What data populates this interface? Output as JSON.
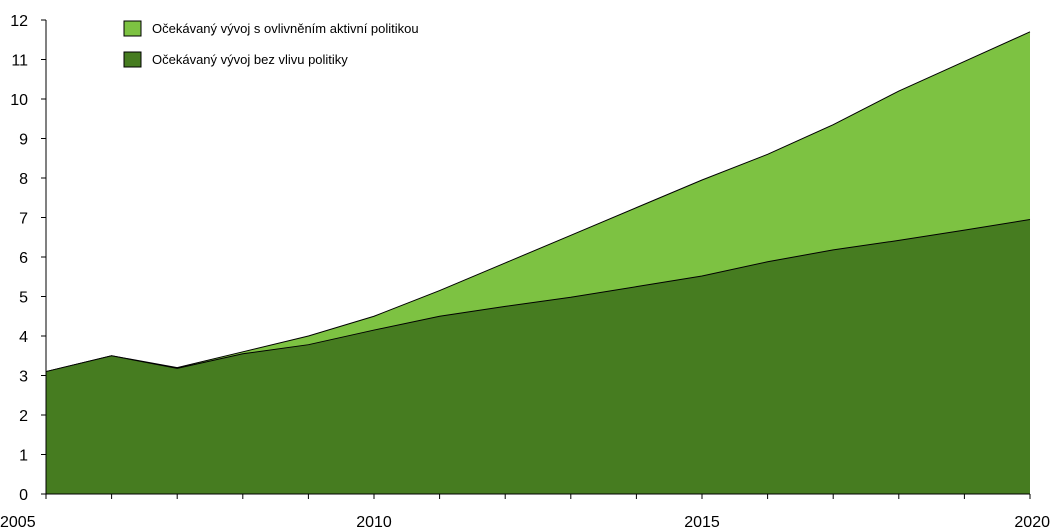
{
  "chart_data": {
    "type": "area",
    "x": [
      2005,
      2006,
      2007,
      2008,
      2009,
      2010,
      2011,
      2012,
      2013,
      2014,
      2015,
      2016,
      2017,
      2018,
      2019,
      2020
    ],
    "series": [
      {
        "name": "Očekávaný vývoj s ovlivněním aktivní politikou",
        "color": "#7dc242",
        "values": [
          3.1,
          3.5,
          3.2,
          3.6,
          4.0,
          4.5,
          5.15,
          5.85,
          6.55,
          7.25,
          7.95,
          8.6,
          9.35,
          10.2,
          10.95,
          11.7
        ]
      },
      {
        "name": "Očekávaný vývoj bez vlivu politiky",
        "color": "#467c20",
        "values": [
          3.1,
          3.5,
          3.18,
          3.55,
          3.78,
          4.15,
          4.5,
          4.75,
          4.98,
          5.25,
          5.52,
          5.88,
          6.18,
          6.42,
          6.68,
          6.95
        ]
      }
    ],
    "xlim": [
      2005,
      2020
    ],
    "ylim": [
      0,
      12
    ],
    "x_tick_labels": [
      "2005",
      "2010",
      "2015",
      "2020"
    ],
    "y_tick_labels": [
      "0",
      "1",
      "2",
      "3",
      "4",
      "5",
      "6",
      "7",
      "8",
      "9",
      "10",
      "11",
      "12"
    ],
    "legend_position": "top-left",
    "grid": false
  }
}
